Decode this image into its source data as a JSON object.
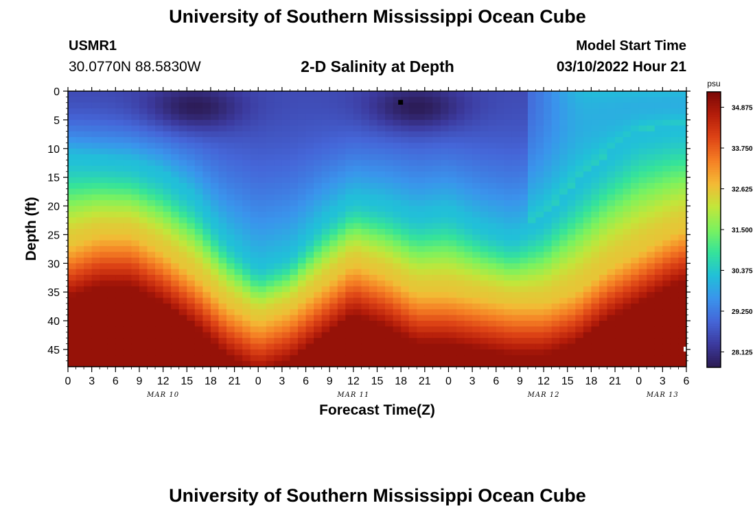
{
  "header": {
    "title": "University of Southern Mississippi Ocean Cube",
    "station_id": "USMR1",
    "coordinates": "30.0770N  88.5830W",
    "subtitle": "2-D Salinity at Depth",
    "model_start_label": "Model Start Time",
    "model_start_value": "03/10/2022 Hour 21"
  },
  "footer": {
    "title": "University of Southern Mississippi Ocean Cube"
  },
  "chart_data": {
    "type": "heatmap",
    "title": "2-D Salinity at Depth",
    "xlabel": "Forecast Time(Z)",
    "ylabel": "Depth (ft)",
    "x_unit": "hours",
    "x_range": [
      0,
      78
    ],
    "x_ticks": [
      0,
      3,
      6,
      9,
      12,
      15,
      18,
      21,
      24,
      27,
      30,
      33,
      36,
      39,
      42,
      45,
      48,
      51,
      54,
      57,
      60,
      63,
      66,
      69,
      72,
      75,
      78
    ],
    "x_tick_labels": [
      "0",
      "3",
      "6",
      "9",
      "12",
      "15",
      "18",
      "21",
      "0",
      "3",
      "6",
      "9",
      "12",
      "15",
      "18",
      "21",
      "0",
      "3",
      "6",
      "9",
      "12",
      "15",
      "18",
      "21",
      "0",
      "3",
      "6"
    ],
    "date_labels": [
      {
        "text": "MAR 10",
        "x": 12
      },
      {
        "text": "MAR 11",
        "x": 36
      },
      {
        "text": "MAR 12",
        "x": 60
      },
      {
        "text": "MAR 13",
        "x": 75
      }
    ],
    "y_range": [
      0,
      48
    ],
    "y_inverted": true,
    "y_ticks": [
      0,
      5,
      10,
      15,
      20,
      25,
      30,
      35,
      40,
      45
    ],
    "y_tick_labels": [
      "0",
      "5",
      "10",
      "15",
      "20",
      "25",
      "30",
      "35",
      "40",
      "45"
    ],
    "colorbar": {
      "unit": "psu",
      "min": 27.7,
      "max": 35.3,
      "ticks": [
        28.125,
        29.25,
        30.375,
        31.5,
        32.625,
        33.75,
        34.875
      ],
      "tick_labels": [
        "28.125",
        "29.250",
        "30.375",
        "31.500",
        "32.625",
        "33.750",
        "34.875"
      ],
      "colors": [
        "#2b1a52",
        "#3c3a9e",
        "#4566d8",
        "#3a94ec",
        "#21c0d8",
        "#35e39a",
        "#7cf25e",
        "#c2e63a",
        "#f4b935",
        "#f57f24",
        "#de4416",
        "#b51d0a",
        "#7a0806"
      ]
    },
    "halocline": {
      "x": [
        0,
        4,
        8,
        12,
        16,
        20,
        24,
        28,
        32,
        36,
        40,
        44,
        48,
        52,
        56,
        60,
        64,
        68,
        72,
        76,
        78
      ],
      "y": [
        11,
        11.5,
        12,
        14,
        18,
        25,
        30,
        28,
        22,
        18,
        19,
        21,
        20,
        23,
        25,
        22,
        16,
        11,
        7,
        6,
        6
      ]
    },
    "bottom_boundary": {
      "x": [
        0,
        4,
        8,
        12,
        16,
        20,
        24,
        28,
        32,
        36,
        40,
        44,
        48,
        52,
        56,
        60,
        64,
        68,
        72,
        76,
        78
      ],
      "y": [
        27,
        25,
        25,
        28,
        32,
        37,
        40,
        38,
        34,
        30,
        32,
        35,
        35,
        36,
        37,
        37,
        35,
        31,
        28,
        25,
        24
      ]
    },
    "surface_min_cores": [
      {
        "x": 16,
        "y": 3
      },
      {
        "x": 44,
        "y": 3
      }
    ],
    "markers": [
      {
        "x": 42,
        "y": 2,
        "color": "#000000"
      },
      {
        "x": 78,
        "y": 45,
        "color": "#ffffff"
      }
    ]
  }
}
